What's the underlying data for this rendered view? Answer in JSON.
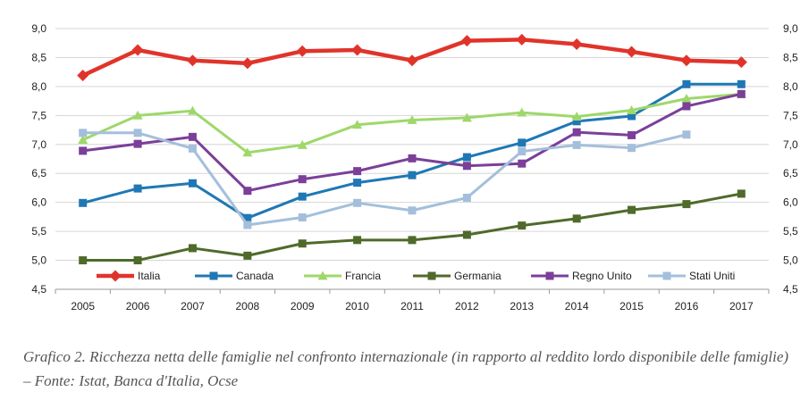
{
  "chart_data": {
    "type": "line",
    "title": "",
    "xlabel": "",
    "ylabel": "",
    "ylim": [
      4.5,
      9.0
    ],
    "y_ticks": [
      "9,0",
      "8,5",
      "8,0",
      "7,5",
      "7,0",
      "6,5",
      "6,0",
      "5,5",
      "5,0",
      "4,5"
    ],
    "y_tick_values": [
      9.0,
      8.5,
      8.0,
      7.5,
      7.0,
      6.5,
      6.0,
      5.5,
      5.0,
      4.5
    ],
    "y_axis": "both sides",
    "grid": "horizontal",
    "legend_position": "bottom (inside plot)",
    "categories": [
      "2005",
      "2006",
      "2007",
      "2008",
      "2009",
      "2010",
      "2011",
      "2012",
      "2013",
      "2014",
      "2015",
      "2016",
      "2017"
    ],
    "series": [
      {
        "name": "Italia",
        "color": "#e0342b",
        "marker": "diamond",
        "values": [
          8.19,
          8.63,
          8.45,
          8.4,
          8.61,
          8.63,
          8.45,
          8.79,
          8.81,
          8.73,
          8.6,
          8.45,
          8.42
        ]
      },
      {
        "name": "Canada",
        "color": "#1f78b4",
        "marker": "square",
        "values": [
          5.99,
          6.24,
          6.33,
          5.73,
          6.1,
          6.34,
          6.47,
          6.78,
          7.03,
          7.4,
          7.49,
          8.04,
          8.04
        ]
      },
      {
        "name": "Francia",
        "color": "#9ed86a",
        "marker": "triangle",
        "values": [
          7.08,
          7.5,
          7.58,
          6.86,
          6.99,
          7.34,
          7.42,
          7.46,
          7.55,
          7.48,
          7.59,
          7.79,
          7.87
        ]
      },
      {
        "name": "Germania",
        "color": "#4f6a2a",
        "marker": "square",
        "values": [
          5.0,
          5.0,
          5.21,
          5.08,
          5.29,
          5.35,
          5.35,
          5.44,
          5.6,
          5.72,
          5.87,
          5.97,
          6.15
        ]
      },
      {
        "name": "Regno Unito",
        "color": "#7b3f99",
        "marker": "square",
        "values": [
          6.89,
          7.01,
          7.13,
          6.2,
          6.4,
          6.54,
          6.76,
          6.63,
          6.67,
          7.21,
          7.16,
          7.66,
          7.87
        ]
      },
      {
        "name": "Stati Uniti",
        "color": "#a4bfdb",
        "marker": "square",
        "values": [
          7.2,
          7.2,
          6.93,
          5.61,
          5.74,
          5.99,
          5.86,
          6.08,
          6.88,
          6.99,
          6.94,
          7.17,
          null
        ]
      }
    ]
  },
  "caption": "Grafico 2. Ricchezza netta delle famiglie nel confronto internazionale (in rapporto al reddito lordo disponibile delle famiglie) – Fonte: Istat, Banca d'Italia, Ocse"
}
